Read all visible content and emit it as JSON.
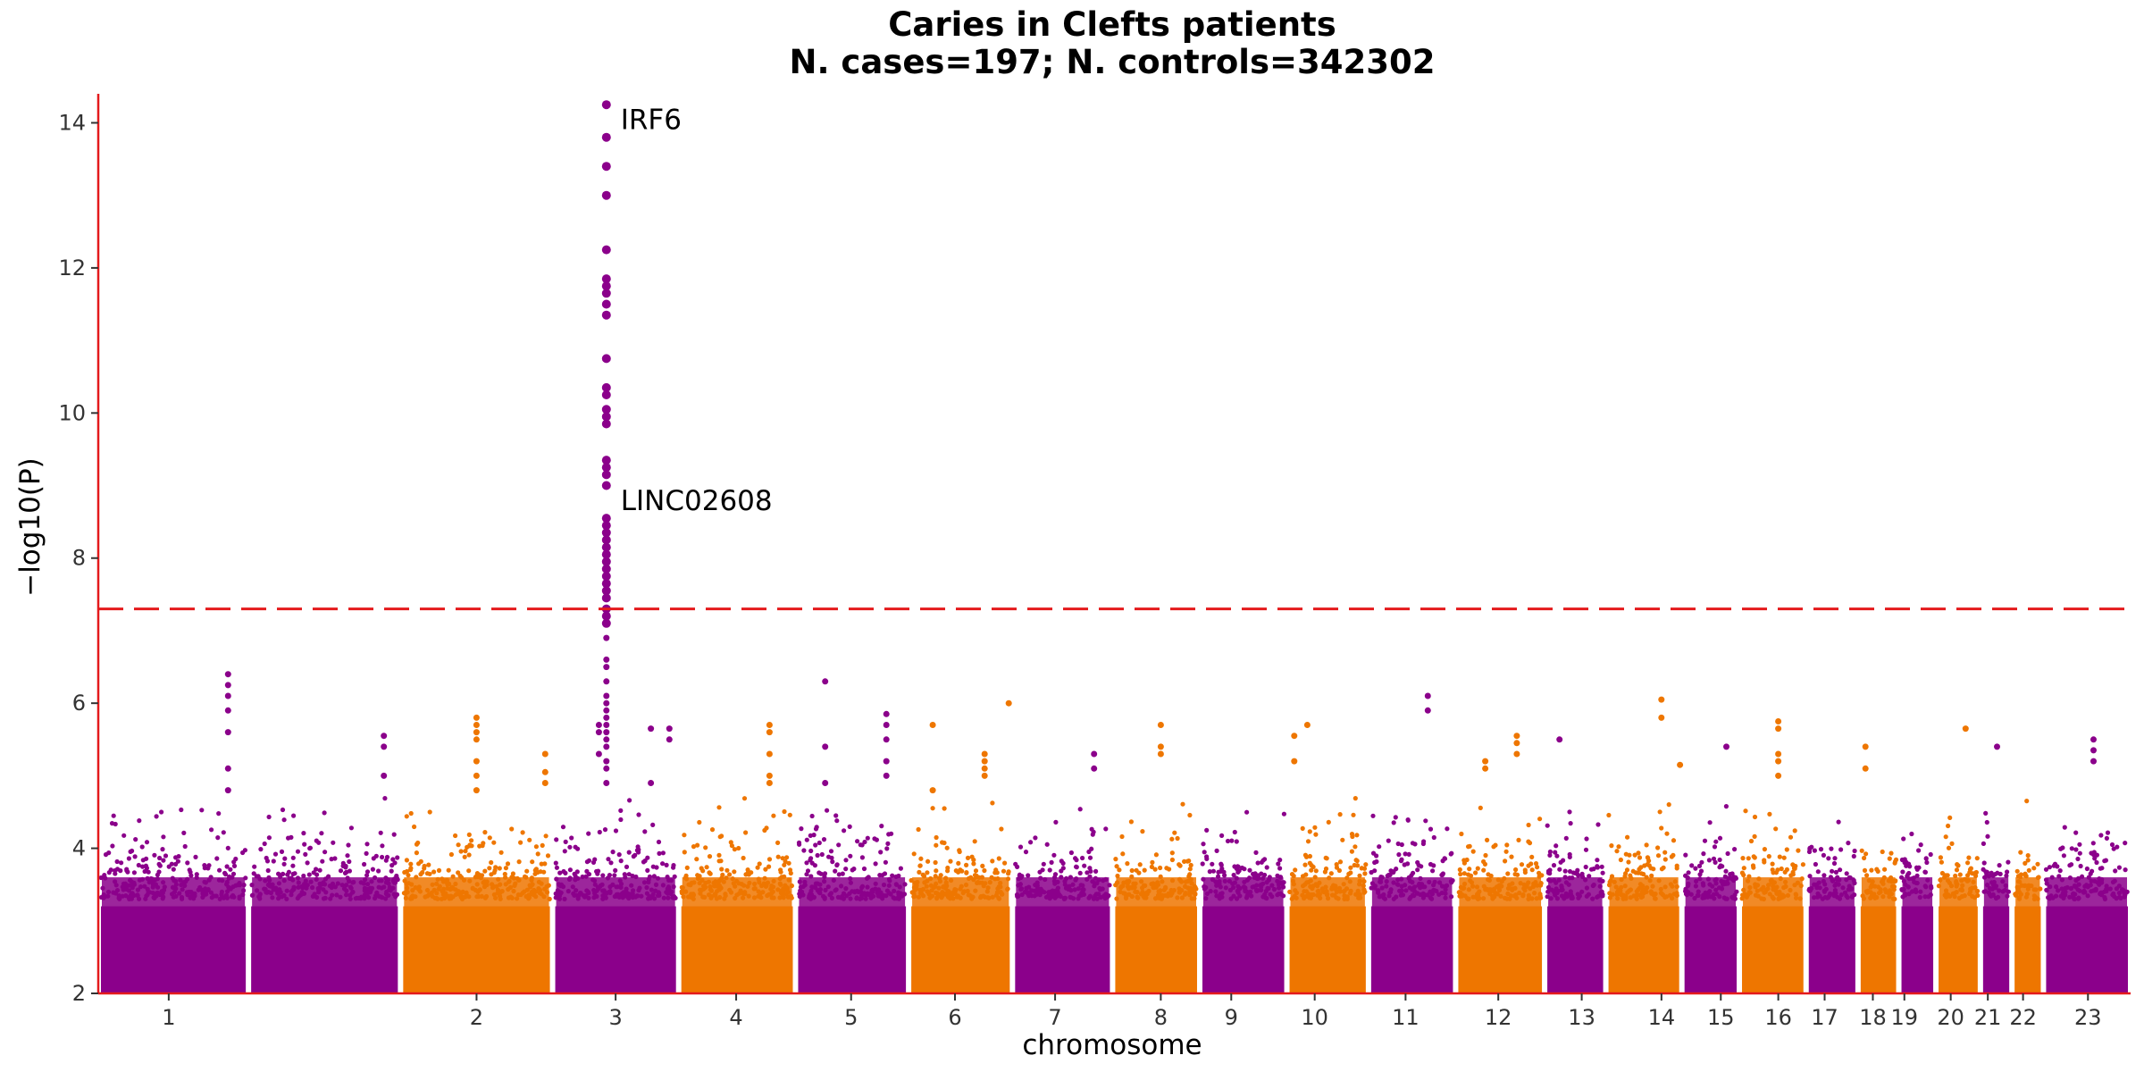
{
  "chart_data": {
    "type": "scatter",
    "subtype": "manhattan",
    "title": "Caries in Clefts patients",
    "subtitle": "N. cases=197; N. controls=342302",
    "xlabel": "chromosome",
    "ylabel": "−log10(P)",
    "ylim": [
      2,
      14.4
    ],
    "yticks": [
      2,
      4,
      6,
      8,
      10,
      12,
      14
    ],
    "grid": false,
    "legend": "none",
    "significance_threshold": 7.3,
    "colors": {
      "purple": "#8b008b",
      "orange": "#ee7600",
      "threshold": "#e41a1c",
      "axis": "#e41a1c"
    },
    "chromosomes": [
      {
        "label": "1",
        "span": [
          0.0,
          0.081
        ],
        "color": "purple",
        "tick": 0.038
      },
      {
        "label": "",
        "span": [
          0.081,
          0.163
        ],
        "color": "purple",
        "tick": null
      },
      {
        "label": "2",
        "span": [
          0.163,
          0.245
        ],
        "color": "orange",
        "tick": 0.204
      },
      {
        "label": "3",
        "span": [
          0.245,
          0.313
        ],
        "color": "purple",
        "tick": 0.279
      },
      {
        "label": "4",
        "span": [
          0.313,
          0.376
        ],
        "color": "orange",
        "tick": 0.344
      },
      {
        "label": "5",
        "span": [
          0.376,
          0.437
        ],
        "color": "purple",
        "tick": 0.406
      },
      {
        "label": "6",
        "span": [
          0.437,
          0.493
        ],
        "color": "orange",
        "tick": 0.462
      },
      {
        "label": "7",
        "span": [
          0.493,
          0.547
        ],
        "color": "purple",
        "tick": 0.516
      },
      {
        "label": "8",
        "span": [
          0.547,
          0.594
        ],
        "color": "orange",
        "tick": 0.573
      },
      {
        "label": "9",
        "span": [
          0.594,
          0.641
        ],
        "color": "purple",
        "tick": 0.611
      },
      {
        "label": "10",
        "span": [
          0.641,
          0.685
        ],
        "color": "orange",
        "tick": 0.656
      },
      {
        "label": "11",
        "span": [
          0.685,
          0.732
        ],
        "color": "purple",
        "tick": 0.705
      },
      {
        "label": "12",
        "span": [
          0.732,
          0.78
        ],
        "color": "orange",
        "tick": 0.755
      },
      {
        "label": "13",
        "span": [
          0.78,
          0.813
        ],
        "color": "purple",
        "tick": 0.8
      },
      {
        "label": "14",
        "span": [
          0.813,
          0.854
        ],
        "color": "orange",
        "tick": 0.843
      },
      {
        "label": "15",
        "span": [
          0.854,
          0.885
        ],
        "color": "purple",
        "tick": 0.875
      },
      {
        "label": "16",
        "span": [
          0.885,
          0.921
        ],
        "color": "orange",
        "tick": 0.906
      },
      {
        "label": "17",
        "span": [
          0.921,
          0.949
        ],
        "color": "purple",
        "tick": 0.931
      },
      {
        "label": "18",
        "span": [
          0.949,
          0.971
        ],
        "color": "orange",
        "tick": 0.957
      },
      {
        "label": "19",
        "span": [
          0.971,
          0.991
        ],
        "color": "purple",
        "tick": 0.974
      },
      {
        "label": "20",
        "span": [
          0.991,
          1.015
        ],
        "color": "orange",
        "tick": 0.999
      },
      {
        "label": "21",
        "span": [
          1.015,
          1.032
        ],
        "color": "purple",
        "tick": 1.019
      },
      {
        "label": "22",
        "span": [
          1.032,
          1.049
        ],
        "color": "orange",
        "tick": 1.038
      },
      {
        "label": "23",
        "span": [
          1.049,
          1.096
        ],
        "color": "purple",
        "tick": 1.073
      }
    ],
    "peaks": [
      {
        "chr": "1",
        "x": 0.07,
        "values": [
          4.8,
          5.1,
          5.6,
          5.9,
          6.1,
          6.25,
          6.4
        ]
      },
      {
        "chr": "1",
        "x": 0.154,
        "values": [
          5.0,
          5.4,
          5.55
        ]
      },
      {
        "chr": "",
        "x": 0.274,
        "values": [
          4.9,
          5.1,
          5.2,
          5.4,
          5.5,
          5.6,
          5.7,
          5.8,
          5.9,
          6.0,
          6.1,
          6.3,
          6.5,
          6.6,
          6.9,
          7.1,
          7.2,
          7.3,
          7.45,
          7.55,
          7.65,
          7.75,
          7.85,
          7.95,
          8.05,
          8.15,
          8.25,
          8.35,
          8.45,
          8.55,
          9.0,
          9.15,
          9.25,
          9.35,
          9.85,
          9.95,
          10.05,
          10.25,
          10.35,
          10.75,
          11.35,
          11.5,
          11.65,
          11.75,
          11.85,
          12.25,
          13.0,
          13.4,
          13.8,
          14.25
        ]
      },
      {
        "chr": "2",
        "x": 0.204,
        "values": [
          4.8,
          5.0,
          5.2,
          5.5,
          5.6,
          5.7,
          5.8
        ]
      },
      {
        "chr": "2",
        "x": 0.241,
        "values": [
          4.9,
          5.05,
          5.3
        ]
      },
      {
        "chr": "3",
        "x": 0.27,
        "values": [
          5.3,
          5.6,
          5.7
        ]
      },
      {
        "chr": "3",
        "x": 0.298,
        "values": [
          4.9,
          5.65
        ]
      },
      {
        "chr": "3",
        "x": 0.308,
        "values": [
          5.5,
          5.65
        ]
      },
      {
        "chr": "4",
        "x": 0.362,
        "values": [
          4.9,
          5.0,
          5.3,
          5.6,
          5.7
        ]
      },
      {
        "chr": "4",
        "x": 0.392,
        "values": [
          4.9,
          5.4,
          6.3
        ]
      },
      {
        "chr": "5",
        "x": 0.425,
        "values": [
          5.0,
          5.2,
          5.5,
          5.7,
          5.85
        ]
      },
      {
        "chr": "6",
        "x": 0.45,
        "values": [
          4.8,
          5.7
        ]
      },
      {
        "chr": "6",
        "x": 0.478,
        "values": [
          5.0,
          5.1,
          5.2,
          5.3
        ]
      },
      {
        "chr": "6",
        "x": 0.491,
        "values": [
          6.0
        ]
      },
      {
        "chr": "7",
        "x": 0.537,
        "values": [
          5.1,
          5.3
        ]
      },
      {
        "chr": "8",
        "x": 0.573,
        "values": [
          5.3,
          5.4,
          5.7
        ]
      },
      {
        "chr": "10",
        "x": 0.645,
        "values": [
          5.2,
          5.55
        ]
      },
      {
        "chr": "10",
        "x": 0.652,
        "values": [
          5.7
        ]
      },
      {
        "chr": "11",
        "x": 0.717,
        "values": [
          5.9,
          6.1
        ]
      },
      {
        "chr": "12",
        "x": 0.748,
        "values": [
          5.1,
          5.2
        ]
      },
      {
        "chr": "12",
        "x": 0.765,
        "values": [
          5.3,
          5.45,
          5.55
        ]
      },
      {
        "chr": "12",
        "x": 0.788,
        "values": [
          5.5
        ]
      },
      {
        "chr": "14",
        "x": 0.843,
        "values": [
          5.8,
          6.05
        ]
      },
      {
        "chr": "14",
        "x": 0.853,
        "values": [
          5.15
        ]
      },
      {
        "chr": "15",
        "x": 0.878,
        "values": [
          5.4
        ]
      },
      {
        "chr": "16",
        "x": 0.906,
        "values": [
          5.0,
          5.2,
          5.3,
          5.65,
          5.75
        ]
      },
      {
        "chr": "18",
        "x": 0.953,
        "values": [
          5.1,
          5.4
        ]
      },
      {
        "chr": "20",
        "x": 1.007,
        "values": [
          5.65
        ]
      },
      {
        "chr": "21",
        "x": 1.024,
        "values": [
          5.4
        ]
      },
      {
        "chr": "23",
        "x": 1.076,
        "values": [
          5.2,
          5.35,
          5.5
        ]
      }
    ],
    "annotations": [
      {
        "label": "IRF6",
        "x": 0.274,
        "y": 14.05
      },
      {
        "label": "LINC02608",
        "x": 0.274,
        "y": 8.8
      }
    ]
  }
}
